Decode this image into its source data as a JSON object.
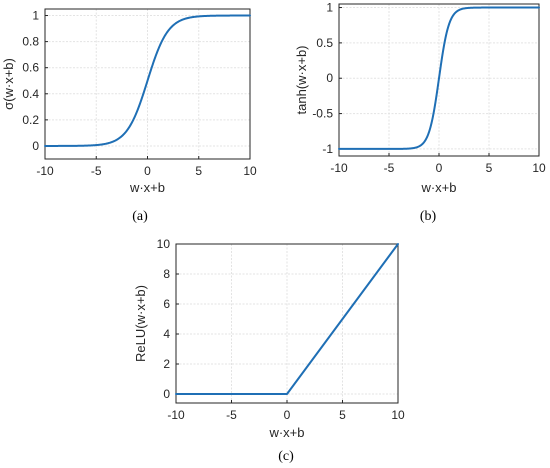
{
  "colors": {
    "series": "#1f6fb5",
    "axes": "#262626",
    "grid": "#e3e3e3"
  },
  "panels": [
    {
      "caption_text": "a",
      "caption": "(a)"
    },
    {
      "caption_text": "b",
      "caption": "(b)"
    },
    {
      "caption_text": "c",
      "caption": "(c)"
    }
  ],
  "chart_data": [
    {
      "type": "line",
      "function": "sigmoid",
      "xlabel": "w·x+b",
      "ylabel": "σ(w·x+b)",
      "xlim": [
        -10,
        10
      ],
      "ylim": [
        -0.1,
        1.05
      ],
      "x_ticks": [
        -10,
        -5,
        0,
        5,
        10
      ],
      "x_tick_labels": [
        "-10",
        "-5",
        "0",
        "5",
        "10"
      ],
      "y_ticks": [
        0,
        0.2,
        0.4,
        0.6,
        0.8,
        1
      ],
      "y_tick_labels": [
        "0",
        "0.2",
        "0.4",
        "0.6",
        "0.8",
        "1"
      ],
      "grid": true,
      "series": [
        {
          "x": [
            -10,
            -8,
            -6,
            -5,
            -4,
            -3,
            -2,
            -1,
            0,
            1,
            2,
            3,
            4,
            5,
            6,
            8,
            10
          ],
          "y": [
            0.0,
            0.0003,
            0.0025,
            0.0067,
            0.018,
            0.047,
            0.119,
            0.269,
            0.5,
            0.731,
            0.881,
            0.953,
            0.982,
            0.993,
            0.9975,
            0.9997,
            1.0
          ]
        }
      ]
    },
    {
      "type": "line",
      "function": "tanh",
      "xlabel": "w·x+b",
      "ylabel": "tanh(w·x+b)",
      "xlim": [
        -10,
        10
      ],
      "ylim": [
        -1.1,
        1.05
      ],
      "x_ticks": [
        -10,
        -5,
        0,
        5,
        10
      ],
      "x_tick_labels": [
        "-10",
        "-5",
        "0",
        "5",
        "10"
      ],
      "y_ticks": [
        -1,
        -0.5,
        0,
        0.5,
        1
      ],
      "y_tick_labels": [
        "-1",
        "-0.5",
        "0",
        "0.5",
        "1"
      ],
      "grid": true,
      "series": [
        {
          "x": [
            -10,
            -5,
            -4,
            -3,
            -2,
            -1.5,
            -1,
            -0.5,
            0,
            0.5,
            1,
            1.5,
            2,
            3,
            4,
            5,
            10
          ],
          "y": [
            -1.0,
            -0.9999,
            -0.9993,
            -0.995,
            -0.964,
            -0.905,
            -0.762,
            -0.462,
            0,
            0.462,
            0.762,
            0.905,
            0.964,
            0.995,
            0.9993,
            0.9999,
            1.0
          ]
        }
      ]
    },
    {
      "type": "line",
      "function": "relu",
      "xlabel": "w·x+b",
      "ylabel": "ReLU(w·x+b)",
      "xlim": [
        -10,
        10
      ],
      "ylim": [
        -0.6,
        10
      ],
      "x_ticks": [
        -10,
        -5,
        0,
        5,
        10
      ],
      "x_tick_labels": [
        "-10",
        "-5",
        "0",
        "5",
        "10"
      ],
      "y_ticks": [
        0,
        2,
        4,
        6,
        8,
        10
      ],
      "y_tick_labels": [
        "0",
        "2",
        "4",
        "6",
        "8",
        "10"
      ],
      "grid": true,
      "series": [
        {
          "x": [
            -10,
            0,
            10
          ],
          "y": [
            0,
            0,
            10
          ]
        }
      ]
    }
  ]
}
